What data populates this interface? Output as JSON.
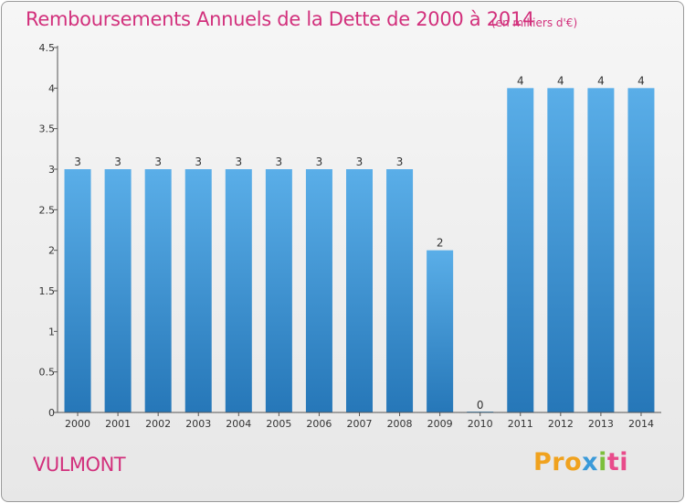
{
  "chart_data": {
    "type": "bar",
    "title": "Remboursements Annuels de la Dette de 2000 à 2014",
    "subtitle": "(en milliers d'€)",
    "categories": [
      "2000",
      "2001",
      "2002",
      "2003",
      "2004",
      "2005",
      "2006",
      "2007",
      "2008",
      "2009",
      "2010",
      "2011",
      "2012",
      "2013",
      "2014"
    ],
    "values": [
      3,
      3,
      3,
      3,
      3,
      3,
      3,
      3,
      3,
      2,
      0,
      4,
      4,
      4,
      4
    ],
    "data_labels": [
      "3",
      "3",
      "3",
      "3",
      "3",
      "3",
      "3",
      "3",
      "3",
      "2",
      "0",
      "4",
      "4",
      "4",
      "4"
    ],
    "y_ticks": [
      "0",
      "0.5",
      "1",
      "1.5",
      "2",
      "2.5",
      "3",
      "3.5",
      "4",
      "4.5"
    ],
    "ylim": [
      0,
      4.5
    ],
    "xlabel": "",
    "ylabel": "",
    "grid": false,
    "bar_color_top": "#5aaee8",
    "bar_color_bottom": "#2677b8"
  },
  "footer": {
    "commune": "VULMONT",
    "logo_parts": [
      "Pro",
      "x",
      "i",
      "ti"
    ]
  },
  "colors": {
    "accent": "#d2307c",
    "logo_orange": "#f0a21e",
    "logo_blue": "#3a9ad9",
    "logo_green": "#7cbf3c"
  }
}
